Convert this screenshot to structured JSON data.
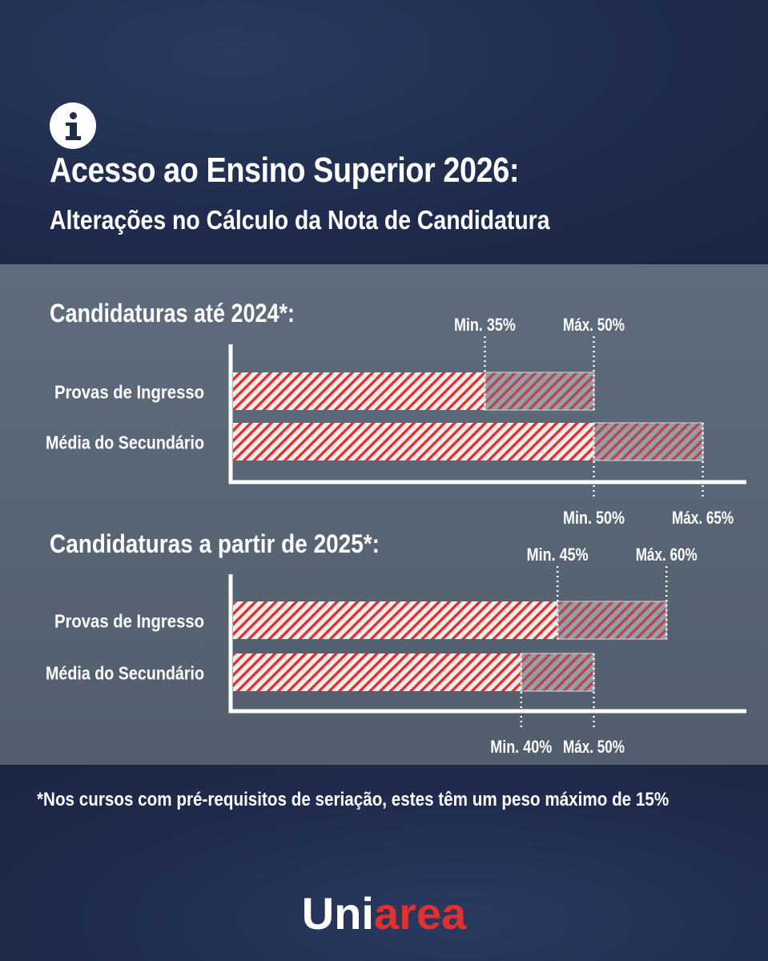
{
  "header": {
    "info_icon": "info-icon",
    "title": "Acesso ao Ensino Superior 2026:",
    "subtitle": "Alterações no Cálculo da Nota de Candidatura"
  },
  "colors": {
    "background": "#1f2d4f",
    "panel": "#5a6777",
    "hatch": "#e0312f",
    "range": "#8a8d96",
    "brand_accent": "#e0312f"
  },
  "chart_data": [
    {
      "type": "bar",
      "title": "Candidaturas até 2024*:",
      "orientation": "horizontal",
      "categories": [
        "Provas de Ingresso",
        "Média do Secundário"
      ],
      "series": [
        {
          "name": "Min.",
          "values": [
            35,
            50
          ]
        },
        {
          "name": "Máx.",
          "values": [
            50,
            65
          ]
        }
      ],
      "labels": [
        {
          "min": "Min. 35%",
          "max": "Máx. 50%"
        },
        {
          "min": "Min. 50%",
          "max": "Máx. 65%"
        }
      ],
      "xlim": [
        0,
        70
      ]
    },
    {
      "type": "bar",
      "title": "Candidaturas a partir de 2025*:",
      "orientation": "horizontal",
      "categories": [
        "Provas de Ingresso",
        "Média do Secundário"
      ],
      "series": [
        {
          "name": "Min.",
          "values": [
            45,
            40
          ]
        },
        {
          "name": "Máx.",
          "values": [
            60,
            50
          ]
        }
      ],
      "labels": [
        {
          "min": "Min. 45%",
          "max": "Máx. 60%"
        },
        {
          "min": "Min. 40%",
          "max": "Máx. 50%"
        }
      ],
      "xlim": [
        0,
        70
      ]
    }
  ],
  "footnote": "*Nos cursos com pré-requisitos de seriação, estes têm um peso máximo de 15%",
  "brand": {
    "part1": "Uni",
    "part2": "area"
  }
}
